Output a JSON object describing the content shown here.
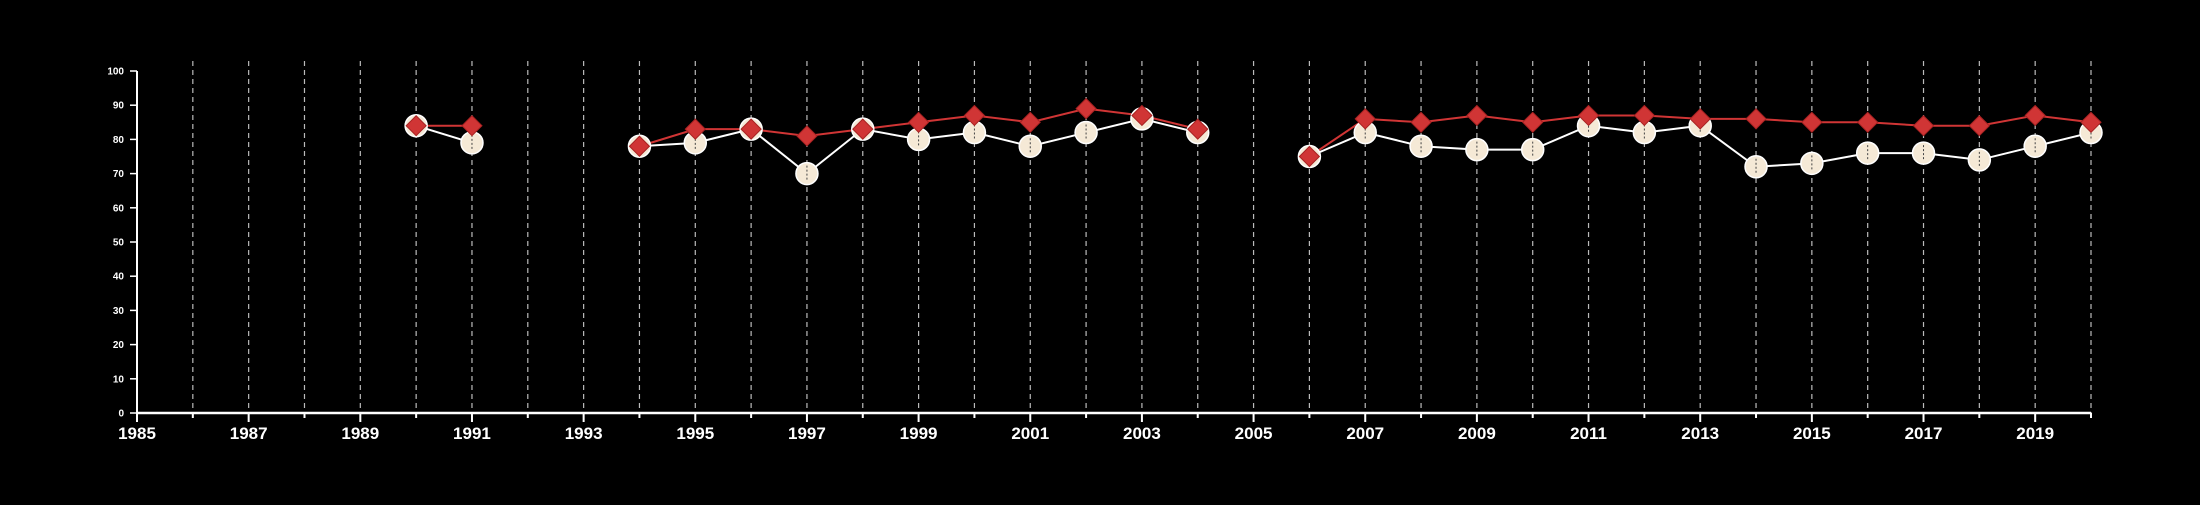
{
  "chart_data": {
    "type": "line",
    "title": "",
    "xlabel": "",
    "ylabel": "",
    "xlim": [
      1985,
      2020
    ],
    "ylim": [
      0,
      100
    ],
    "x_ticks": [
      1985,
      1987,
      1989,
      1991,
      1993,
      1995,
      1997,
      1999,
      2001,
      2003,
      2005,
      2007,
      2009,
      2011,
      2013,
      2015,
      2017,
      2019
    ],
    "y_ticks": [
      0,
      10,
      20,
      30,
      40,
      50,
      60,
      70,
      80,
      90,
      100
    ],
    "vertical_grid": "dashed lines at every year from 1986 to 2020",
    "legend": "none",
    "series": [
      {
        "marker": "diamond",
        "color": "#d03535",
        "points": [
          {
            "x": 1990,
            "y": 84
          },
          {
            "x": 1991,
            "y": 84
          },
          {
            "x": 1994,
            "y": 78
          },
          {
            "x": 1995,
            "y": 83
          },
          {
            "x": 1996,
            "y": 83
          },
          {
            "x": 1997,
            "y": 81
          },
          {
            "x": 1998,
            "y": 83
          },
          {
            "x": 1999,
            "y": 85
          },
          {
            "x": 2000,
            "y": 87
          },
          {
            "x": 2001,
            "y": 85
          },
          {
            "x": 2002,
            "y": 89
          },
          {
            "x": 2003,
            "y": 87
          },
          {
            "x": 2004,
            "y": 83
          },
          {
            "x": 2006,
            "y": 75
          },
          {
            "x": 2007,
            "y": 86
          },
          {
            "x": 2008,
            "y": 85
          },
          {
            "x": 2009,
            "y": 87
          },
          {
            "x": 2010,
            "y": 85
          },
          {
            "x": 2011,
            "y": 87
          },
          {
            "x": 2012,
            "y": 87
          },
          {
            "x": 2013,
            "y": 86
          },
          {
            "x": 2014,
            "y": 86
          },
          {
            "x": 2015,
            "y": 85
          },
          {
            "x": 2016,
            "y": 85
          },
          {
            "x": 2017,
            "y": 84
          },
          {
            "x": 2018,
            "y": 84
          },
          {
            "x": 2019,
            "y": 87
          },
          {
            "x": 2020,
            "y": 85
          }
        ]
      },
      {
        "marker": "circle",
        "color": "#f5e9d6",
        "points": [
          {
            "x": 1990,
            "y": 84
          },
          {
            "x": 1991,
            "y": 79
          },
          {
            "x": 1994,
            "y": 78
          },
          {
            "x": 1995,
            "y": 79
          },
          {
            "x": 1996,
            "y": 83
          },
          {
            "x": 1997,
            "y": 70
          },
          {
            "x": 1998,
            "y": 83
          },
          {
            "x": 1999,
            "y": 80
          },
          {
            "x": 2000,
            "y": 82
          },
          {
            "x": 2001,
            "y": 78
          },
          {
            "x": 2002,
            "y": 82
          },
          {
            "x": 2003,
            "y": 86
          },
          {
            "x": 2004,
            "y": 82
          },
          {
            "x": 2006,
            "y": 75
          },
          {
            "x": 2007,
            "y": 82
          },
          {
            "x": 2008,
            "y": 78
          },
          {
            "x": 2009,
            "y": 77
          },
          {
            "x": 2010,
            "y": 77
          },
          {
            "x": 2011,
            "y": 84
          },
          {
            "x": 2012,
            "y": 82
          },
          {
            "x": 2013,
            "y": 84
          },
          {
            "x": 2014,
            "y": 72
          },
          {
            "x": 2015,
            "y": 73
          },
          {
            "x": 2016,
            "y": 76
          },
          {
            "x": 2017,
            "y": 76
          },
          {
            "x": 2018,
            "y": 74
          },
          {
            "x": 2019,
            "y": 78
          },
          {
            "x": 2020,
            "y": 82
          }
        ]
      }
    ]
  },
  "colors": {
    "background": "#000000",
    "axis": "#ffffff",
    "grid": "#bbbbbb",
    "line_light": "#ffffff"
  }
}
